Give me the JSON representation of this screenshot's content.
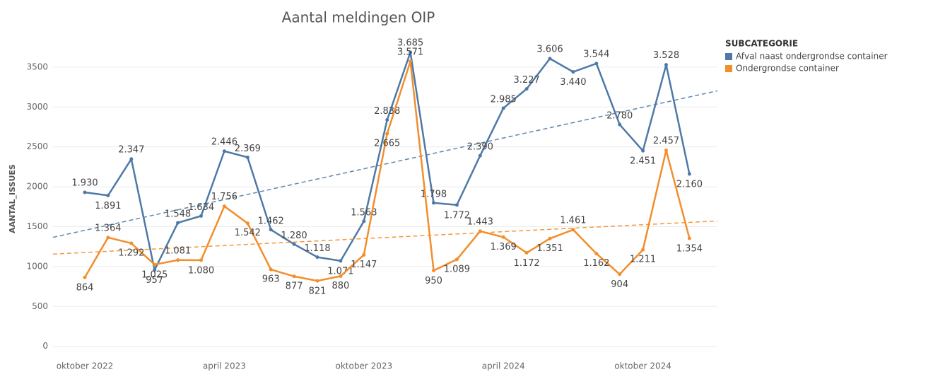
{
  "chart_data": {
    "type": "line",
    "title": "Aantal meldingen OIP",
    "y_label": "AANTAL_ISSUES",
    "legend_title": "SUBCATEGORIE",
    "legend": "right",
    "grid": true,
    "trendlines": true,
    "categories": [
      "oktober 2022",
      null,
      null,
      null,
      null,
      null,
      "april 2023",
      null,
      null,
      null,
      null,
      null,
      "oktober 2023",
      null,
      null,
      null,
      null,
      null,
      "april 2024",
      null,
      null,
      null,
      null,
      null,
      "oktober 2024",
      null,
      null
    ],
    "ylim": [
      -100,
      3800
    ],
    "yticks": [
      0,
      500,
      1000,
      1500,
      2000,
      2500,
      3000,
      3500
    ],
    "series": [
      {
        "name": "Afval naast ondergrondse container",
        "color": "#4e79a7",
        "values": [
          1930,
          1891,
          2347,
          957,
          1548,
          1634,
          2446,
          2369,
          1462,
          1280,
          1118,
          1071,
          1568,
          2838,
          3685,
          1798,
          1772,
          2390,
          2985,
          3227,
          3606,
          3440,
          3544,
          2780,
          2451,
          3528,
          2160
        ],
        "value_labels": [
          "1.930",
          "1.891",
          "2.347",
          "957",
          "1.548",
          "1.634",
          "2.446",
          "2.369",
          "1.462",
          "1.280",
          "1.118",
          "1.071",
          "1.568",
          "2.838",
          "3.685",
          "1.798",
          "1.772",
          "2.390",
          "2.985",
          "3.227",
          "3.606",
          "3.440",
          "3.544",
          "2.780",
          "2.451",
          "3.528",
          "2.160"
        ]
      },
      {
        "name": "Ondergrondse container",
        "color": "#f28e2b",
        "values": [
          864,
          1364,
          1292,
          1025,
          1081,
          1080,
          1756,
          1542,
          963,
          877,
          821,
          880,
          1147,
          2665,
          3571,
          950,
          1089,
          1443,
          1369,
          1172,
          1351,
          1461,
          1162,
          904,
          1211,
          2457,
          1354
        ],
        "value_labels": [
          "864",
          "1.364",
          "1.292",
          "1.025",
          "1.081",
          "1.080",
          "1.756",
          "1.542",
          "963",
          "877",
          "821",
          "880",
          "1.147",
          "2.665",
          "3.571",
          "950",
          "1.089",
          "1.443",
          "1.369",
          "1.172",
          "1.351",
          "1.461",
          "1.162",
          "904",
          "1.211",
          "2.457",
          "1.354"
        ]
      }
    ]
  }
}
